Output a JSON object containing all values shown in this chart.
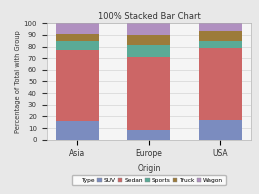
{
  "title": "100% Stacked Bar Chart",
  "xlabel": "Origin",
  "ylabel": "Percentage of Total with Group",
  "categories": [
    "Asia",
    "Europe",
    "USA"
  ],
  "segments": {
    "SUV": [
      16,
      8,
      17
    ],
    "Sedan": [
      61,
      63,
      62
    ],
    "Sports": [
      8,
      10,
      6
    ],
    "Truck": [
      6,
      9,
      8
    ],
    "Wagon": [
      9,
      10,
      7
    ]
  },
  "colors": {
    "SUV": "#7b8cbf",
    "Sedan": "#cc6666",
    "Sports": "#5aaa96",
    "Truck": "#9c7b3a",
    "Wagon": "#b090c0"
  },
  "legend_title": "Type",
  "ylim": [
    0,
    100
  ],
  "background_color": "#e8e8e8",
  "plot_bg_color": "#f5f5f5",
  "yticks": [
    0,
    10,
    20,
    30,
    40,
    50,
    60,
    70,
    80,
    90,
    100
  ]
}
